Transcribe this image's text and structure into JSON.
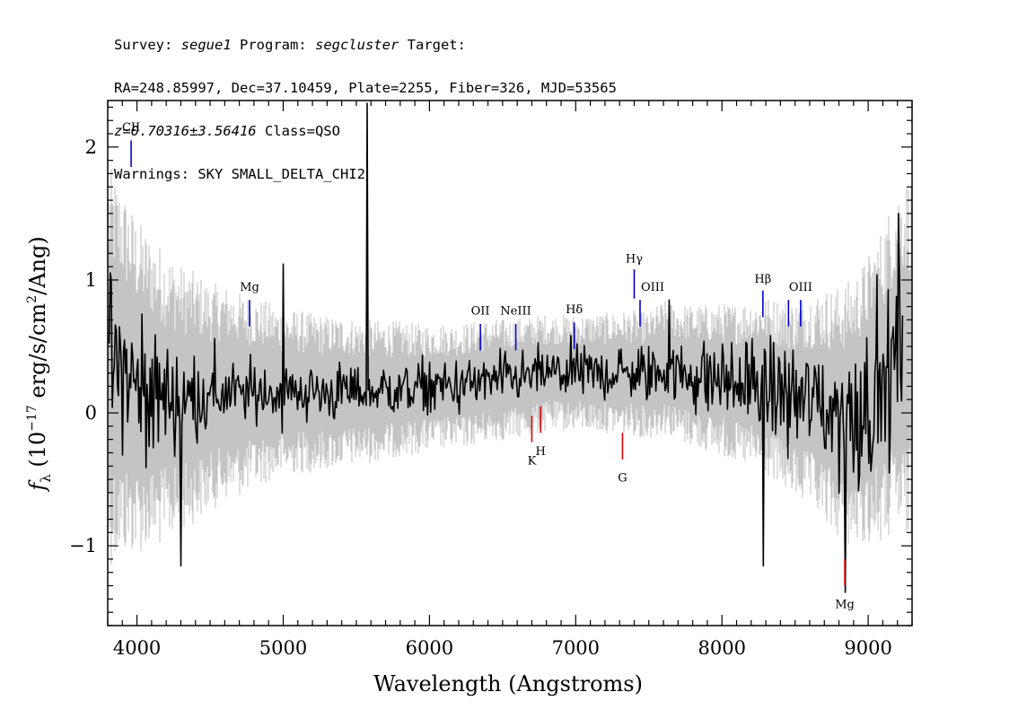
{
  "header": {
    "line1": {
      "survey_prefix": "Survey: ",
      "survey": "segue1",
      "program_prefix": " Program: ",
      "program": "segcluster",
      "target": " Target:"
    },
    "line2": "RA=248.85997, Dec=37.10459, Plate=2255, Fiber=326, MJD=53565",
    "line3": {
      "z": "z=0.70316±3.56416",
      "class": " Class=QSO"
    },
    "line4": "Warnings: SKY SMALL_DELTA_CHI2"
  },
  "chart_data": {
    "type": "line",
    "xlabel": "Wavelength (Angstroms)",
    "ylabel": "f_λ (10^-17 erg/s/cm^2/Ang)",
    "ylabel_parts": {
      "f": "f",
      "sub": "λ",
      "pre": " (10",
      "sup1": "−17",
      "mid": " erg/s/cm",
      "sup2": "2",
      "post": "/Ang)"
    },
    "xlim": [
      3800,
      9300
    ],
    "ylim": [
      -1.6,
      2.35
    ],
    "xticks": [
      4000,
      5000,
      6000,
      7000,
      8000,
      9000
    ],
    "xtick_labels": [
      "4000",
      "5000",
      "6000",
      "7000",
      "8000",
      "9000"
    ],
    "yticks": [
      -1,
      0,
      1,
      2
    ],
    "ytick_labels": [
      "−1",
      "0",
      "1",
      "2"
    ],
    "colors": {
      "flux": "#000000",
      "noise": "#c4c4c4",
      "emission": "#0000cc",
      "absorption": "#dd0000"
    },
    "flux_series": {
      "name": "",
      "x": [
        3820,
        3900,
        4000,
        4100,
        4200,
        4300,
        4400,
        4500,
        4600,
        4700,
        4800,
        4900,
        5000,
        5100,
        5200,
        5300,
        5400,
        5500,
        5600,
        5700,
        5800,
        5900,
        6000,
        6100,
        6200,
        6300,
        6400,
        6500,
        6600,
        6700,
        6800,
        6900,
        7000,
        7100,
        7200,
        7300,
        7400,
        7500,
        7600,
        7700,
        7800,
        7900,
        8000,
        8100,
        8200,
        8300,
        8400,
        8500,
        8600,
        8700,
        8800,
        8900,
        9000,
        9100,
        9200
      ],
      "y": [
        0.35,
        0.3,
        0.2,
        0.15,
        0.12,
        0.1,
        0.12,
        0.12,
        0.15,
        0.14,
        0.15,
        0.16,
        0.15,
        0.16,
        0.15,
        0.15,
        0.16,
        0.16,
        0.16,
        0.17,
        0.18,
        0.18,
        0.19,
        0.2,
        0.2,
        0.22,
        0.24,
        0.25,
        0.26,
        0.28,
        0.3,
        0.3,
        0.3,
        0.3,
        0.3,
        0.3,
        0.3,
        0.28,
        0.35,
        0.3,
        0.28,
        0.26,
        0.25,
        0.22,
        0.22,
        0.2,
        0.15,
        0.1,
        0.1,
        0.05,
        0.0,
        0.0,
        0.1,
        0.2,
        0.4
      ],
      "scatter": [
        0.45,
        0.45,
        0.4,
        0.35,
        0.3,
        0.26,
        0.24,
        0.22,
        0.2,
        0.18,
        0.17,
        0.17,
        0.17,
        0.16,
        0.16,
        0.16,
        0.15,
        0.15,
        0.15,
        0.15,
        0.15,
        0.15,
        0.15,
        0.15,
        0.14,
        0.14,
        0.14,
        0.14,
        0.14,
        0.14,
        0.14,
        0.14,
        0.14,
        0.14,
        0.14,
        0.16,
        0.16,
        0.16,
        0.18,
        0.18,
        0.18,
        0.2,
        0.2,
        0.22,
        0.24,
        0.28,
        0.3,
        0.3,
        0.32,
        0.34,
        0.38,
        0.4,
        0.4,
        0.45,
        0.5
      ]
    },
    "noise_series": {
      "name": "",
      "x": [
        3820,
        4000,
        4500,
        5000,
        5500,
        6000,
        6500,
        7000,
        7500,
        8000,
        8500,
        9000,
        9250
      ],
      "width": [
        1.3,
        1.1,
        0.75,
        0.55,
        0.48,
        0.42,
        0.4,
        0.38,
        0.42,
        0.5,
        0.65,
        0.95,
        1.2
      ]
    },
    "features": [
      {
        "x": 5577,
        "y": 2.33,
        "label": "sky-line"
      },
      {
        "x": 5000,
        "y": 1.12,
        "label": "peak-5000"
      },
      {
        "x": 7640,
        "y": 0.85,
        "label": "peak-7640"
      },
      {
        "x": 8280,
        "y": -1.15,
        "label": "trough-8280"
      },
      {
        "x": 8840,
        "y": -1.35,
        "label": "trough-8840"
      },
      {
        "x": 4300,
        "y": -1.15,
        "label": "trough-4300"
      },
      {
        "x": 9205,
        "y": 1.5,
        "label": "edge-spike"
      }
    ],
    "emission_lines": [
      {
        "label": "CII",
        "x": 3960,
        "y_top": 2.05,
        "y_bot": 1.85,
        "label_y": 2.12,
        "label_side": "above"
      },
      {
        "label": "Mg",
        "x": 4770,
        "y_top": 0.85,
        "y_bot": 0.65,
        "label_y": 0.92,
        "label_side": "above"
      },
      {
        "label": "OII",
        "x": 6348,
        "y_top": 0.67,
        "y_bot": 0.47,
        "label_y": 0.74,
        "label_side": "above"
      },
      {
        "label": "NeIII",
        "x": 6590,
        "y_top": 0.67,
        "y_bot": 0.47,
        "label_y": 0.74,
        "label_side": "above"
      },
      {
        "label": "Hδ",
        "x": 6990,
        "y_top": 0.68,
        "y_bot": 0.48,
        "label_y": 0.75,
        "label_side": "above"
      },
      {
        "label": "Hγ",
        "x": 7400,
        "y_top": 1.08,
        "y_bot": 0.86,
        "label_y": 1.13,
        "label_side": "above"
      },
      {
        "label": "OIII",
        "x": 7440,
        "y_top": 0.85,
        "y_bot": 0.65,
        "label_y": 0.92,
        "label_side": "right"
      },
      {
        "label": "Hβ",
        "x": 8280,
        "y_top": 0.92,
        "y_bot": 0.72,
        "label_y": 0.98,
        "label_side": "above"
      },
      {
        "label": "OIII",
        "x": 8455,
        "y_top": 0.85,
        "y_bot": 0.65,
        "label_y": 0.92,
        "label_side": "none"
      },
      {
        "label": "OIII",
        "x": 8538,
        "y_top": 0.85,
        "y_bot": 0.65,
        "label_y": 0.92,
        "label_side": "above"
      }
    ],
    "absorption_lines": [
      {
        "label": "K",
        "x": 6700,
        "y_top": -0.02,
        "y_bot": -0.22,
        "label_y": -0.32
      },
      {
        "label": "H",
        "x": 6760,
        "y_top": 0.05,
        "y_bot": -0.15,
        "label_y": -0.25
      },
      {
        "label": "G",
        "x": 7320,
        "y_top": -0.15,
        "y_bot": -0.35,
        "label_y": -0.45
      },
      {
        "label": "Mg",
        "x": 8840,
        "y_top": -1.1,
        "y_bot": -1.3,
        "label_y": -1.4
      }
    ]
  }
}
